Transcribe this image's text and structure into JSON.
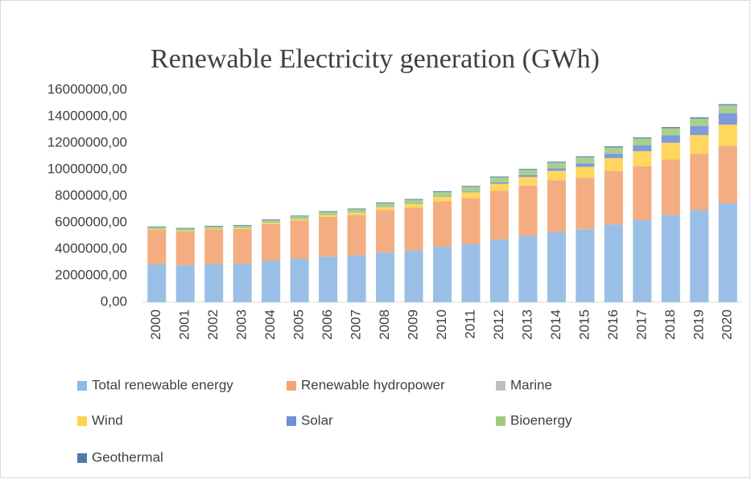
{
  "chart_data": {
    "type": "bar",
    "stacked": true,
    "title": "Renewable Electricity generation (GWh)",
    "categories": [
      "2000",
      "2001",
      "2002",
      "2003",
      "2004",
      "2005",
      "2006",
      "2007",
      "2008",
      "2009",
      "2010",
      "2011",
      "2012",
      "2013",
      "2014",
      "2015",
      "2016",
      "2017",
      "2018",
      "2019",
      "2020"
    ],
    "series": [
      {
        "name": "Total renewable energy",
        "color": "#8fb8e3",
        "values": [
          2850000,
          2790000,
          2870000,
          2900000,
          3120000,
          3270000,
          3440000,
          3540000,
          3770000,
          3900000,
          4180000,
          4370000,
          4730000,
          5000000,
          5290000,
          5500000,
          5870000,
          6180000,
          6560000,
          6940000,
          7450000
        ]
      },
      {
        "name": "Renewable hydropower",
        "color": "#f2a473",
        "values": [
          2630000,
          2560000,
          2620000,
          2620000,
          2780000,
          2880000,
          3000000,
          3030000,
          3180000,
          3220000,
          3420000,
          3480000,
          3680000,
          3800000,
          3910000,
          3880000,
          4030000,
          4080000,
          4200000,
          4250000,
          4350000
        ]
      },
      {
        "name": "Marine",
        "color": "#c0c0c0",
        "values": [
          600,
          600,
          600,
          600,
          600,
          600,
          600,
          600,
          600,
          600,
          600,
          600,
          700,
          900,
          1000,
          1000,
          1000,
          1000,
          1000,
          1000,
          1000
        ]
      },
      {
        "name": "Wind",
        "color": "#ffd24d",
        "values": [
          31000,
          38000,
          52000,
          63000,
          85000,
          104000,
          133000,
          170000,
          220000,
          275000,
          342000,
          436000,
          521000,
          640000,
          710000,
          830000,
          960000,
          1130000,
          1260000,
          1410000,
          1590000
        ]
      },
      {
        "name": "Solar",
        "color": "#6f8fd6",
        "values": [
          1000,
          1500,
          2000,
          2500,
          3000,
          4000,
          6000,
          8000,
          12000,
          20000,
          33000,
          63000,
          99000,
          135000,
          190000,
          250000,
          330000,
          450000,
          570000,
          690000,
          850000
        ]
      },
      {
        "name": "Bioenergy",
        "color": "#9fcb80",
        "values": [
          150000,
          155000,
          165000,
          180000,
          195000,
          215000,
          230000,
          255000,
          280000,
          300000,
          330000,
          350000,
          380000,
          400000,
          420000,
          460000,
          480000,
          500000,
          530000,
          560000,
          600000
        ]
      },
      {
        "name": "Geothermal",
        "color": "#4f7ba8",
        "values": [
          52000,
          53000,
          54000,
          55000,
          57000,
          58000,
          60000,
          62000,
          64000,
          66000,
          68000,
          69000,
          70000,
          72000,
          75000,
          80000,
          83000,
          85000,
          88000,
          90000,
          93000
        ]
      }
    ],
    "ylim": [
      0,
      16000000
    ],
    "yticks": [
      {
        "value": 0,
        "label": "0,00"
      },
      {
        "value": 2000000,
        "label": "2000000,00"
      },
      {
        "value": 4000000,
        "label": "4000000,00"
      },
      {
        "value": 6000000,
        "label": "6000000,00"
      },
      {
        "value": 8000000,
        "label": "8000000,00"
      },
      {
        "value": 10000000,
        "label": "10000000,00"
      },
      {
        "value": 12000000,
        "label": "12000000,00"
      },
      {
        "value": 14000000,
        "label": "14000000,00"
      },
      {
        "value": 16000000,
        "label": "16000000,00"
      }
    ],
    "legend": "bottom"
  }
}
